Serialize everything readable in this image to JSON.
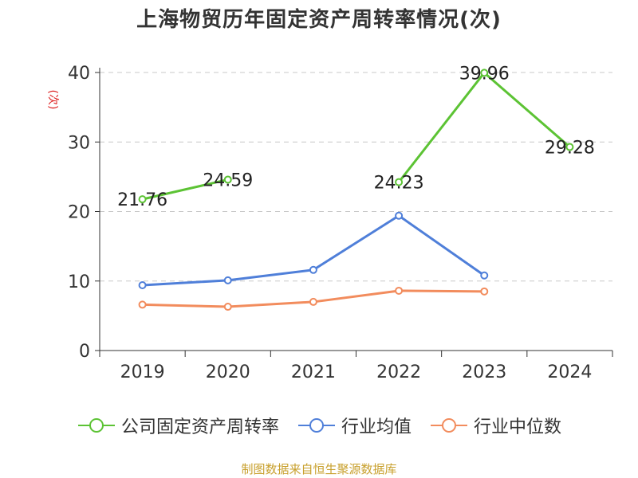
{
  "chart_data": {
    "type": "line",
    "title": "上海物贸历年固定资产周转率情况(次)",
    "ylabel": "(次)",
    "xlabel": "",
    "categories": [
      "2019",
      "2020",
      "2021",
      "2022",
      "2023",
      "2024"
    ],
    "ylim": [
      0,
      40
    ],
    "yticks": [
      0,
      10,
      20,
      30,
      40
    ],
    "grid": true,
    "legend_position": "bottom",
    "series": [
      {
        "name": "公司固定资产周转率",
        "color": "#5cc334",
        "values": [
          21.76,
          24.59,
          null,
          24.23,
          39.96,
          29.28
        ],
        "labels": [
          "21.76",
          "24.59",
          "",
          "24.23",
          "39.96",
          "29.28"
        ],
        "show_labels": true
      },
      {
        "name": "行业均值",
        "color": "#4f7fd9",
        "values": [
          9.4,
          10.1,
          11.6,
          19.4,
          10.8,
          null
        ],
        "show_labels": false
      },
      {
        "name": "行业中位数",
        "color": "#f28c5d",
        "values": [
          6.6,
          6.3,
          7.0,
          8.6,
          8.5,
          null
        ],
        "show_labels": false
      }
    ]
  },
  "source": "制图数据来自恒生聚源数据库"
}
